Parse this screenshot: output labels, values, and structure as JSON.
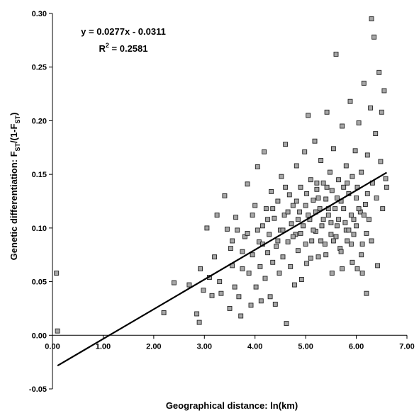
{
  "chart_data": {
    "type": "scatter",
    "xlabel": "Geographical distance: ln(km)",
    "ylabel": {
      "prefix": "Genetic differentiation: F",
      "sub1": "ST",
      "mid": "/(1-F",
      "sub2": "ST",
      "suffix": ")"
    },
    "xlim": [
      0,
      7
    ],
    "ylim": [
      -0.05,
      0.3
    ],
    "x_ticks": [
      "0.00",
      "1.00",
      "2.00",
      "3.00",
      "4.00",
      "5.00",
      "6.00",
      "7.00"
    ],
    "y_ticks": [
      "0.30",
      "0.25",
      "0.20",
      "0.15",
      "0.10",
      "0.05",
      "0.00",
      "-0.05"
    ],
    "grid": false,
    "regression": {
      "slope": 0.0277,
      "intercept": -0.0311,
      "x_range": [
        0.1,
        6.6
      ],
      "equation": "y = 0.0277x - 0.0311",
      "r2_prefix": "R",
      "r2_power": "2",
      "r2_value": " = 0.2581"
    },
    "series": [
      {
        "marker": "square",
        "marker_color": "#a6a6a6",
        "points": [
          [
            0.08,
            0.058
          ],
          [
            0.1,
            0.004
          ],
          [
            2.2,
            0.021
          ],
          [
            2.4,
            0.049
          ],
          [
            2.7,
            0.047
          ],
          [
            2.85,
            0.02
          ],
          [
            2.9,
            0.012
          ],
          [
            2.92,
            0.062
          ],
          [
            2.98,
            0.042
          ],
          [
            3.05,
            0.1
          ],
          [
            3.1,
            0.054
          ],
          [
            3.15,
            0.037
          ],
          [
            3.2,
            0.073
          ],
          [
            3.25,
            0.112
          ],
          [
            3.3,
            0.05
          ],
          [
            3.33,
            0.039
          ],
          [
            3.4,
            0.13
          ],
          [
            3.45,
            0.099
          ],
          [
            3.5,
            0.025
          ],
          [
            3.52,
            0.081
          ],
          [
            3.55,
            0.065
          ],
          [
            3.6,
            0.045
          ],
          [
            3.62,
            0.11
          ],
          [
            3.68,
            0.036
          ],
          [
            3.72,
            0.018
          ],
          [
            3.75,
            0.062
          ],
          [
            3.8,
            0.092
          ],
          [
            3.85,
            0.141
          ],
          [
            3.88,
            0.058
          ],
          [
            3.92,
            0.028
          ],
          [
            3.95,
            0.075
          ],
          [
            4.0,
            0.121
          ],
          [
            4.02,
            0.045
          ],
          [
            4.05,
            0.157
          ],
          [
            4.08,
            0.087
          ],
          [
            4.1,
            0.064
          ],
          [
            4.12,
            0.032
          ],
          [
            4.15,
            0.102
          ],
          [
            4.18,
            0.171
          ],
          [
            4.2,
            0.053
          ],
          [
            4.22,
            0.118
          ],
          [
            4.25,
            0.077
          ],
          [
            4.28,
            0.094
          ],
          [
            4.3,
            0.036
          ],
          [
            4.32,
            0.134
          ],
          [
            4.35,
            0.068
          ],
          [
            4.38,
            0.109
          ],
          [
            4.4,
            0.029
          ],
          [
            4.42,
            0.083
          ],
          [
            4.45,
            0.125
          ],
          [
            4.48,
            0.058
          ],
          [
            4.5,
            0.098
          ],
          [
            4.52,
            0.148
          ],
          [
            4.55,
            0.073
          ],
          [
            4.58,
            0.112
          ],
          [
            4.6,
            0.178
          ],
          [
            4.62,
            0.011
          ],
          [
            4.65,
            0.087
          ],
          [
            4.68,
            0.131
          ],
          [
            4.7,
            0.064
          ],
          [
            4.72,
            0.104
          ],
          [
            4.75,
            0.121
          ],
          [
            4.78,
            0.047
          ],
          [
            4.8,
            0.094
          ],
          [
            4.82,
            0.158
          ],
          [
            4.85,
            0.079
          ],
          [
            4.88,
            0.115
          ],
          [
            4.9,
            0.138
          ],
          [
            4.92,
            0.052
          ],
          [
            4.95,
            0.102
          ],
          [
            4.98,
            0.171
          ],
          [
            5.0,
            0.121
          ],
          [
            5.02,
            0.067
          ],
          [
            5.05,
            0.205
          ],
          [
            5.08,
            0.108
          ],
          [
            5.1,
            0.145
          ],
          [
            5.12,
            0.088
          ],
          [
            5.15,
            0.126
          ],
          [
            5.18,
            0.181
          ],
          [
            5.2,
            0.097
          ],
          [
            5.22,
            0.136
          ],
          [
            5.25,
            0.073
          ],
          [
            5.28,
            0.118
          ],
          [
            5.3,
            0.163
          ],
          [
            5.32,
            0.102
          ],
          [
            5.35,
            0.142
          ],
          [
            5.38,
            0.085
          ],
          [
            5.4,
            0.127
          ],
          [
            5.42,
            0.208
          ],
          [
            5.45,
            0.112
          ],
          [
            5.48,
            0.152
          ],
          [
            5.5,
            0.094
          ],
          [
            5.52,
            0.135
          ],
          [
            5.55,
            0.174
          ],
          [
            5.58,
            0.118
          ],
          [
            5.6,
            0.262
          ],
          [
            5.62,
            0.102
          ],
          [
            5.65,
            0.145
          ],
          [
            5.68,
            0.081
          ],
          [
            5.7,
            0.125
          ],
          [
            5.72,
            0.195
          ],
          [
            5.75,
            0.138
          ],
          [
            5.78,
            0.105
          ],
          [
            5.8,
            0.158
          ],
          [
            5.82,
            0.088
          ],
          [
            5.85,
            0.132
          ],
          [
            5.88,
            0.218
          ],
          [
            5.9,
            0.112
          ],
          [
            5.92,
            0.148
          ],
          [
            5.95,
            0.094
          ],
          [
            5.98,
            0.172
          ],
          [
            6.0,
            0.128
          ],
          [
            6.02,
            0.062
          ],
          [
            6.05,
            0.198
          ],
          [
            6.08,
            0.115
          ],
          [
            6.1,
            0.152
          ],
          [
            6.12,
            0.085
          ],
          [
            6.15,
            0.235
          ],
          [
            6.18,
            0.122
          ],
          [
            6.2,
            0.039
          ],
          [
            6.22,
            0.168
          ],
          [
            6.25,
            0.108
          ],
          [
            6.28,
            0.212
          ],
          [
            6.3,
            0.295
          ],
          [
            6.32,
            0.142
          ],
          [
            6.35,
            0.278
          ],
          [
            6.38,
            0.188
          ],
          [
            6.4,
            0.128
          ],
          [
            6.42,
            0.065
          ],
          [
            6.45,
            0.245
          ],
          [
            6.48,
            0.162
          ],
          [
            6.5,
            0.208
          ],
          [
            6.52,
            0.118
          ],
          [
            6.55,
            0.228
          ],
          [
            6.58,
            0.146
          ],
          [
            6.6,
            0.138
          ],
          [
            4.6,
            0.138
          ],
          [
            4.9,
            0.095
          ],
          [
            5.0,
            0.085
          ],
          [
            5.1,
            0.072
          ],
          [
            5.2,
            0.115
          ],
          [
            5.3,
            0.088
          ],
          [
            5.4,
            0.075
          ],
          [
            5.5,
            0.105
          ],
          [
            5.6,
            0.092
          ],
          [
            5.7,
            0.078
          ],
          [
            5.8,
            0.098
          ],
          [
            5.9,
            0.085
          ],
          [
            6.0,
            0.102
          ],
          [
            6.1,
            0.075
          ],
          [
            6.2,
            0.095
          ],
          [
            6.3,
            0.088
          ],
          [
            5.15,
            0.098
          ],
          [
            5.35,
            0.108
          ],
          [
            5.55,
            0.088
          ],
          [
            5.75,
            0.118
          ],
          [
            5.95,
            0.108
          ],
          [
            6.15,
            0.112
          ],
          [
            5.05,
            0.112
          ],
          [
            5.25,
            0.128
          ],
          [
            5.45,
            0.118
          ],
          [
            5.65,
            0.108
          ],
          [
            5.85,
            0.098
          ],
          [
            6.05,
            0.118
          ],
          [
            4.85,
            0.108
          ],
          [
            4.75,
            0.092
          ],
          [
            4.65,
            0.115
          ],
          [
            4.55,
            0.098
          ],
          [
            4.45,
            0.088
          ],
          [
            4.35,
            0.118
          ],
          [
            4.25,
            0.108
          ],
          [
            4.15,
            0.085
          ],
          [
            4.05,
            0.098
          ],
          [
            3.95,
            0.112
          ],
          [
            3.85,
            0.095
          ],
          [
            3.75,
            0.078
          ],
          [
            3.65,
            0.098
          ],
          [
            3.55,
            0.088
          ],
          [
            5.62,
            0.128
          ],
          [
            5.82,
            0.142
          ],
          [
            6.02,
            0.138
          ],
          [
            6.22,
            0.132
          ],
          [
            5.42,
            0.138
          ],
          [
            5.22,
            0.142
          ],
          [
            5.02,
            0.132
          ],
          [
            4.82,
            0.125
          ],
          [
            5.72,
            0.062
          ],
          [
            5.92,
            0.068
          ],
          [
            6.12,
            0.058
          ],
          [
            5.52,
            0.058
          ]
        ]
      }
    ]
  }
}
